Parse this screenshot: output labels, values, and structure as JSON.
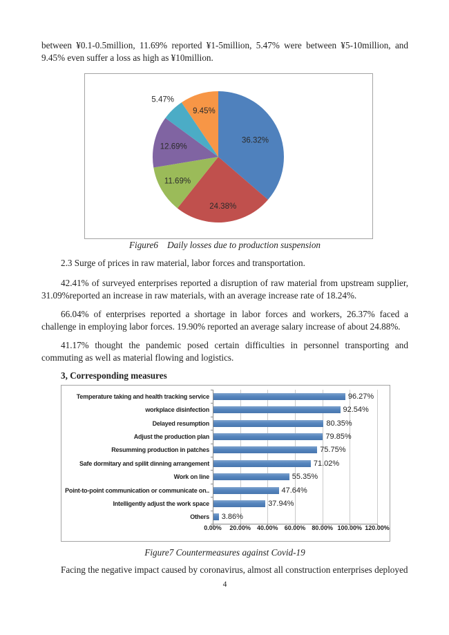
{
  "content": {
    "p1": "between ¥0.1-0.5million, 11.69% reported ¥1-5million, 5.47% were between ¥5-10million, and 9.45% even suffer a loss as high as ¥10million.",
    "fig6_caption": "Figure6    Daily losses due to production suspension",
    "section_2_3": "2.3 Surge of prices in raw material, labor forces and transportation.",
    "p3": "42.41% of surveyed enterprises reported a disruption of raw material from upstream supplier, 31.09%reported an increase in raw materials, with an average increase rate of 18.24%.",
    "p4": "66.04% of enterprises reported a shortage in labor forces and workers, 26.37% faced a challenge in employing labor forces. 19.90% reported an average salary increase of about 24.88%.",
    "p5": "41.17% thought the pandemic posed certain difficulties in personnel transporting and commuting as well as material flowing and logistics.",
    "heading3": "3, Corresponding measures",
    "fig7_caption": "Figure7 Countermeasures against Covid-19",
    "p6": "Facing the negative impact caused by coronavirus, almost all construction enterprises deployed",
    "page_number": "4"
  },
  "chart_data": [
    {
      "type": "pie",
      "title": "Daily losses due to production suspension",
      "values": [
        36.32,
        24.38,
        11.69,
        12.69,
        5.47,
        9.45
      ],
      "labels": [
        "36.32%",
        "24.38%",
        "11.69%",
        "12.69%",
        "5.47%",
        "9.45%"
      ],
      "colors": [
        "#4F81BD",
        "#C0504D",
        "#9BBB59",
        "#8064A2",
        "#4BACC6",
        "#F79646"
      ],
      "label_placement": [
        "inside",
        "inside",
        "inside",
        "inside",
        "outside",
        "inside"
      ],
      "start_angle_deg": 0,
      "direction": "clockwise",
      "legend": "none"
    },
    {
      "type": "bar",
      "orientation": "horizontal",
      "title": "Countermeasures against Covid-19",
      "categories": [
        "Temperature taking and health tracking service",
        "workplace disinfection",
        "Delayed resumption",
        "Adjust the production plan",
        "Resumming production in patches",
        "Safe dormitary and spilit dinning arrangement",
        "Work on line",
        "Point-to-point communication or communicate on..",
        "Intelligently adjust the work space",
        "Others"
      ],
      "values": [
        96.27,
        92.54,
        80.35,
        79.85,
        75.75,
        71.02,
        55.35,
        47.64,
        37.94,
        3.86
      ],
      "value_labels": [
        "96.27%",
        "92.54%",
        "80.35%",
        "79.85%",
        "75.75%",
        "71.02%",
        "55.35%",
        "47.64%",
        "37.94%",
        "3.86%"
      ],
      "x_ticks": [
        "0.00%",
        "20.00%",
        "40.00%",
        "60.00%",
        "80.00%",
        "100.00%",
        "120.00%"
      ],
      "xlim": [
        0,
        120
      ],
      "grid": "vertical",
      "legend": "none",
      "bar_color": "#4F81BD"
    }
  ]
}
